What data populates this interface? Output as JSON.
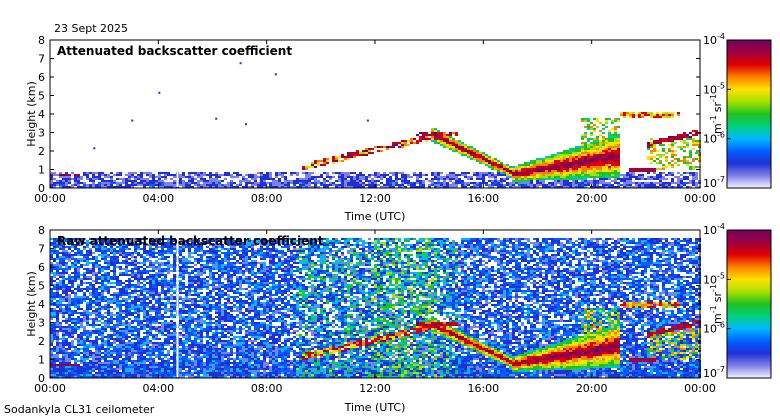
{
  "date_label": "23 Sept 2025",
  "footer_label": "Sodankyla CL31 ceilometer",
  "chart_data": [
    {
      "type": "heatmap",
      "title": "Attenuated backscatter coefficient",
      "xlabel": "Time (UTC)",
      "ylabel": "Height (km)",
      "x_ticks": [
        "00:00",
        "04:00",
        "08:00",
        "12:00",
        "16:00",
        "20:00",
        "00:00"
      ],
      "y_ticks": [
        "0",
        "1",
        "2",
        "3",
        "4",
        "5",
        "6",
        "7",
        "8"
      ],
      "xlim": [
        0,
        24
      ],
      "ylim": [
        0,
        8
      ],
      "colorbar": {
        "scale": "log",
        "range": [
          1e-07,
          0.0001
        ],
        "ticks": [
          {
            "base": "10",
            "exp": "-4"
          },
          {
            "base": "10",
            "exp": "-5"
          },
          {
            "base": "10",
            "exp": "-6"
          },
          {
            "base": "10",
            "exp": "-7"
          }
        ],
        "unit_parts": [
          {
            "base": "m",
            "exp": "-1"
          },
          {
            "base": "sr",
            "exp": "-1"
          }
        ],
        "colors": [
          "#f4f4ff",
          "#8080e8",
          "#2030d8",
          "#0060ff",
          "#00b8ff",
          "#00d080",
          "#20c020",
          "#a8e000",
          "#ffe000",
          "#ff8000",
          "#e00000",
          "#a00040",
          "#700060"
        ]
      }
    },
    {
      "type": "heatmap",
      "title": "Raw attenuated backscatter coefficient",
      "xlabel": "Time (UTC)",
      "ylabel": "Height (km)",
      "x_ticks": [
        "00:00",
        "04:00",
        "08:00",
        "12:00",
        "16:00",
        "20:00",
        "00:00"
      ],
      "y_ticks": [
        "0",
        "1",
        "2",
        "3",
        "4",
        "5",
        "6",
        "7",
        "8"
      ],
      "xlim": [
        0,
        24
      ],
      "ylim": [
        0,
        8
      ],
      "colorbar": {
        "scale": "log",
        "range": [
          1e-07,
          0.0001
        ],
        "ticks": [
          {
            "base": "10",
            "exp": "-4"
          },
          {
            "base": "10",
            "exp": "-5"
          },
          {
            "base": "10",
            "exp": "-6"
          },
          {
            "base": "10",
            "exp": "-7"
          }
        ],
        "unit_parts": [
          {
            "base": "m",
            "exp": "-1"
          },
          {
            "base": "sr",
            "exp": "-1"
          }
        ],
        "colors": [
          "#f4f4ff",
          "#8080e8",
          "#2030d8",
          "#0060ff",
          "#00b8ff",
          "#00d080",
          "#20c020",
          "#a8e000",
          "#ffe000",
          "#ff8000",
          "#e00000",
          "#a00040",
          "#700060"
        ]
      }
    }
  ]
}
